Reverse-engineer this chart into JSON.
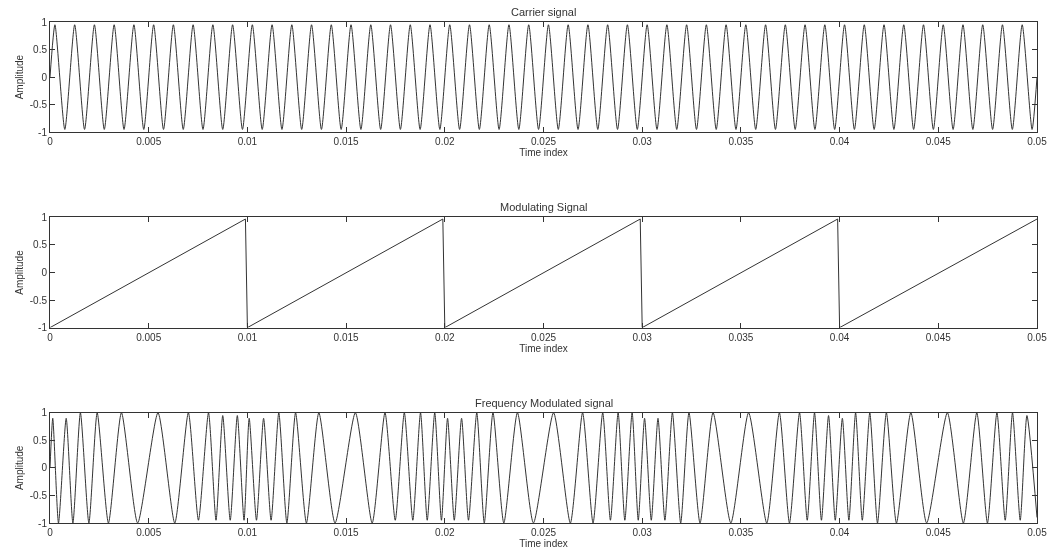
{
  "chart_data": [
    {
      "type": "line",
      "title": "Carrier signal",
      "xlabel": "Time index",
      "ylabel": "Amplitude",
      "xlim": [
        0,
        0.05
      ],
      "ylim": [
        -1,
        1
      ],
      "xticks": [
        0,
        0.005,
        0.01,
        0.015,
        0.02,
        0.025,
        0.03,
        0.035,
        0.04,
        0.045,
        0.05
      ],
      "yticks": [
        -1,
        -0.5,
        0,
        0.5,
        1
      ],
      "x": [
        0,
        0.00025,
        0.00075,
        0.00125,
        0.00175,
        0.00225,
        0.00275,
        0.00325,
        0.00375,
        0.00425,
        0.00475,
        0.00525,
        0.00575,
        0.00625,
        0.00675,
        0.00725,
        0.00775,
        0.00825,
        0.00875,
        0.00925,
        0.00975,
        0.01025,
        0.01075,
        0.01125,
        0.01175,
        0.01225,
        0.01275,
        0.01325,
        0.01375,
        0.01425,
        0.01475,
        0.01525,
        0.01575,
        0.01625,
        0.01675,
        0.01725,
        0.01775,
        0.01825,
        0.01875,
        0.01925,
        0.01975,
        0.02025,
        0.02075,
        0.02125,
        0.02175,
        0.02225,
        0.02275,
        0.02325,
        0.02375,
        0.02425,
        0.02475,
        0.02525,
        0.02575,
        0.02625,
        0.02675,
        0.02725,
        0.02775,
        0.02825,
        0.02875,
        0.02925,
        0.02975,
        0.03025,
        0.03075,
        0.03125,
        0.03175,
        0.03225,
        0.03275,
        0.03325,
        0.03375,
        0.03425,
        0.03475,
        0.03525,
        0.03575,
        0.03625,
        0.03675,
        0.03725,
        0.03775,
        0.03825,
        0.03875,
        0.03925,
        0.03975,
        0.04025,
        0.04075,
        0.04125,
        0.04175,
        0.04225,
        0.04275,
        0.04325,
        0.04375,
        0.04425,
        0.04475,
        0.04525,
        0.04575,
        0.04625,
        0.04675,
        0.04725,
        0.04775,
        0.04825,
        0.04875,
        0.04925,
        0.04975,
        0.05
      ],
      "series": [
        {
          "color": "#333333",
          "values": [
            0,
            0.95,
            -0.95,
            0.95,
            -0.95,
            0.95,
            -0.95,
            0.95,
            -0.95,
            0.95,
            -0.95,
            0.95,
            -0.95,
            0.95,
            -0.95,
            0.95,
            -0.95,
            0.95,
            -0.95,
            0.95,
            -0.95,
            0.95,
            -0.95,
            0.95,
            -0.95,
            0.95,
            -0.95,
            0.95,
            -0.95,
            0.95,
            -0.95,
            0.95,
            -0.95,
            0.95,
            -0.95,
            0.95,
            -0.95,
            0.95,
            -0.95,
            0.95,
            -0.95,
            0.95,
            -0.95,
            0.95,
            -0.95,
            0.95,
            -0.95,
            0.95,
            -0.95,
            0.95,
            -0.95,
            0.95,
            -0.95,
            0.95,
            -0.95,
            0.95,
            -0.95,
            0.95,
            -0.95,
            0.95,
            -0.95,
            0.95,
            -0.95,
            0.95,
            -0.95,
            0.95,
            -0.95,
            0.95,
            -0.95,
            0.95,
            -0.95,
            0.95,
            -0.95,
            0.95,
            -0.95,
            0.95,
            -0.95,
            0.95,
            -0.95,
            0.95,
            -0.95,
            0.95,
            -0.95,
            0.95,
            -0.95,
            0.95,
            -0.95,
            0.95,
            -0.95,
            0.95,
            -0.95,
            0.95,
            -0.95,
            0.95,
            -0.95,
            0.95,
            -0.95,
            0.95,
            -0.95,
            0.95,
            -0.95,
            0
          ]
        }
      ]
    },
    {
      "type": "line",
      "title": "Modulating Signal",
      "xlabel": "Time index",
      "ylabel": "Amplitude",
      "xlim": [
        0,
        0.05
      ],
      "ylim": [
        -1,
        1
      ],
      "xticks": [
        0,
        0.005,
        0.01,
        0.015,
        0.02,
        0.025,
        0.03,
        0.035,
        0.04,
        0.045,
        0.05
      ],
      "yticks": [
        -1,
        -0.5,
        0,
        0.5,
        1
      ],
      "x": [
        0,
        0.0099,
        0.01,
        0.0199,
        0.02,
        0.0299,
        0.03,
        0.0399,
        0.04,
        0.05
      ],
      "series": [
        {
          "color": "#333333",
          "values": [
            -1,
            0.97,
            -1,
            0.97,
            -1,
            0.97,
            -1,
            0.97,
            -1,
            0.97
          ]
        }
      ]
    },
    {
      "type": "line",
      "title": "Frequency Modulated signal",
      "xlabel": "Time index",
      "ylabel": "Amplitude",
      "xlim": [
        0,
        0.05
      ],
      "ylim": [
        -1,
        1
      ],
      "xticks": [
        0,
        0.005,
        0.01,
        0.015,
        0.02,
        0.025,
        0.03,
        0.035,
        0.04,
        0.045,
        0.05
      ],
      "yticks": [
        -1,
        -0.5,
        0,
        0.5,
        1
      ],
      "x": [
        0,
        0.00014,
        0.00043,
        0.00082,
        0.00116,
        0.00154,
        0.00197,
        0.00239,
        0.00296,
        0.00362,
        0.00444,
        0.00547,
        0.00632,
        0.00701,
        0.00752,
        0.00803,
        0.00841,
        0.00875,
        0.00913,
        0.00949,
        0.00983,
        0.01009,
        0.01046,
        0.01082,
        0.0112,
        0.01159,
        0.012,
        0.01244,
        0.01299,
        0.01362,
        0.01444,
        0.01547,
        0.01632,
        0.01697,
        0.01749,
        0.01795,
        0.01838,
        0.01877,
        0.01911,
        0.01949,
        0.01983,
        0.02014,
        0.02048,
        0.02085,
        0.0212,
        0.02162,
        0.022,
        0.02244,
        0.02299,
        0.02368,
        0.02449,
        0.02551,
        0.02636,
        0.02698,
        0.02751,
        0.028,
        0.02839,
        0.02878,
        0.02912,
        0.02949,
        0.0298,
        0.03012,
        0.03046,
        0.0308,
        0.03115,
        0.03153,
        0.03195,
        0.03237,
        0.03293,
        0.03359,
        0.03449,
        0.03539,
        0.03631,
        0.03695,
        0.03746,
        0.03797,
        0.03836,
        0.03873,
        0.03908,
        0.03944,
        0.03978,
        0.04014,
        0.04047,
        0.04081,
        0.04115,
        0.04153,
        0.04192,
        0.04237,
        0.04288,
        0.04361,
        0.04441,
        0.04546,
        0.04627,
        0.04695,
        0.04749,
        0.04797,
        0.04839,
        0.04876,
        0.04915,
        0.04949,
        0.05
      ],
      "series": [
        {
          "color": "#333333",
          "values": [
            0,
            0.9,
            -1,
            0.9,
            -1,
            1,
            -1,
            1,
            -1,
            1,
            -1,
            1,
            -1,
            1,
            -0.95,
            1,
            -0.95,
            0.95,
            -0.95,
            0.95,
            -0.95,
            0.9,
            -0.95,
            0.9,
            -0.95,
            1,
            -1,
            1,
            -1,
            1,
            -1,
            1,
            -1,
            1,
            -0.95,
            1,
            -0.95,
            1,
            -0.95,
            1,
            -0.95,
            0.9,
            -0.95,
            0.9,
            -0.95,
            1,
            -1,
            1,
            -1,
            1,
            -1,
            1,
            -1,
            1,
            -1,
            1,
            -0.95,
            1,
            -0.95,
            1,
            -0.95,
            0.9,
            -0.95,
            0.9,
            -0.95,
            1,
            -1,
            1,
            -1,
            1,
            -1,
            1,
            -1,
            1,
            -1,
            1,
            -0.95,
            1,
            -0.95,
            0.95,
            -0.95,
            0.9,
            -0.95,
            1,
            -0.95,
            1,
            -1,
            1,
            -1,
            1,
            -1,
            1,
            -1,
            1,
            -1,
            1,
            -0.95,
            1,
            -0.95,
            0.95,
            -0.9
          ]
        }
      ]
    }
  ]
}
